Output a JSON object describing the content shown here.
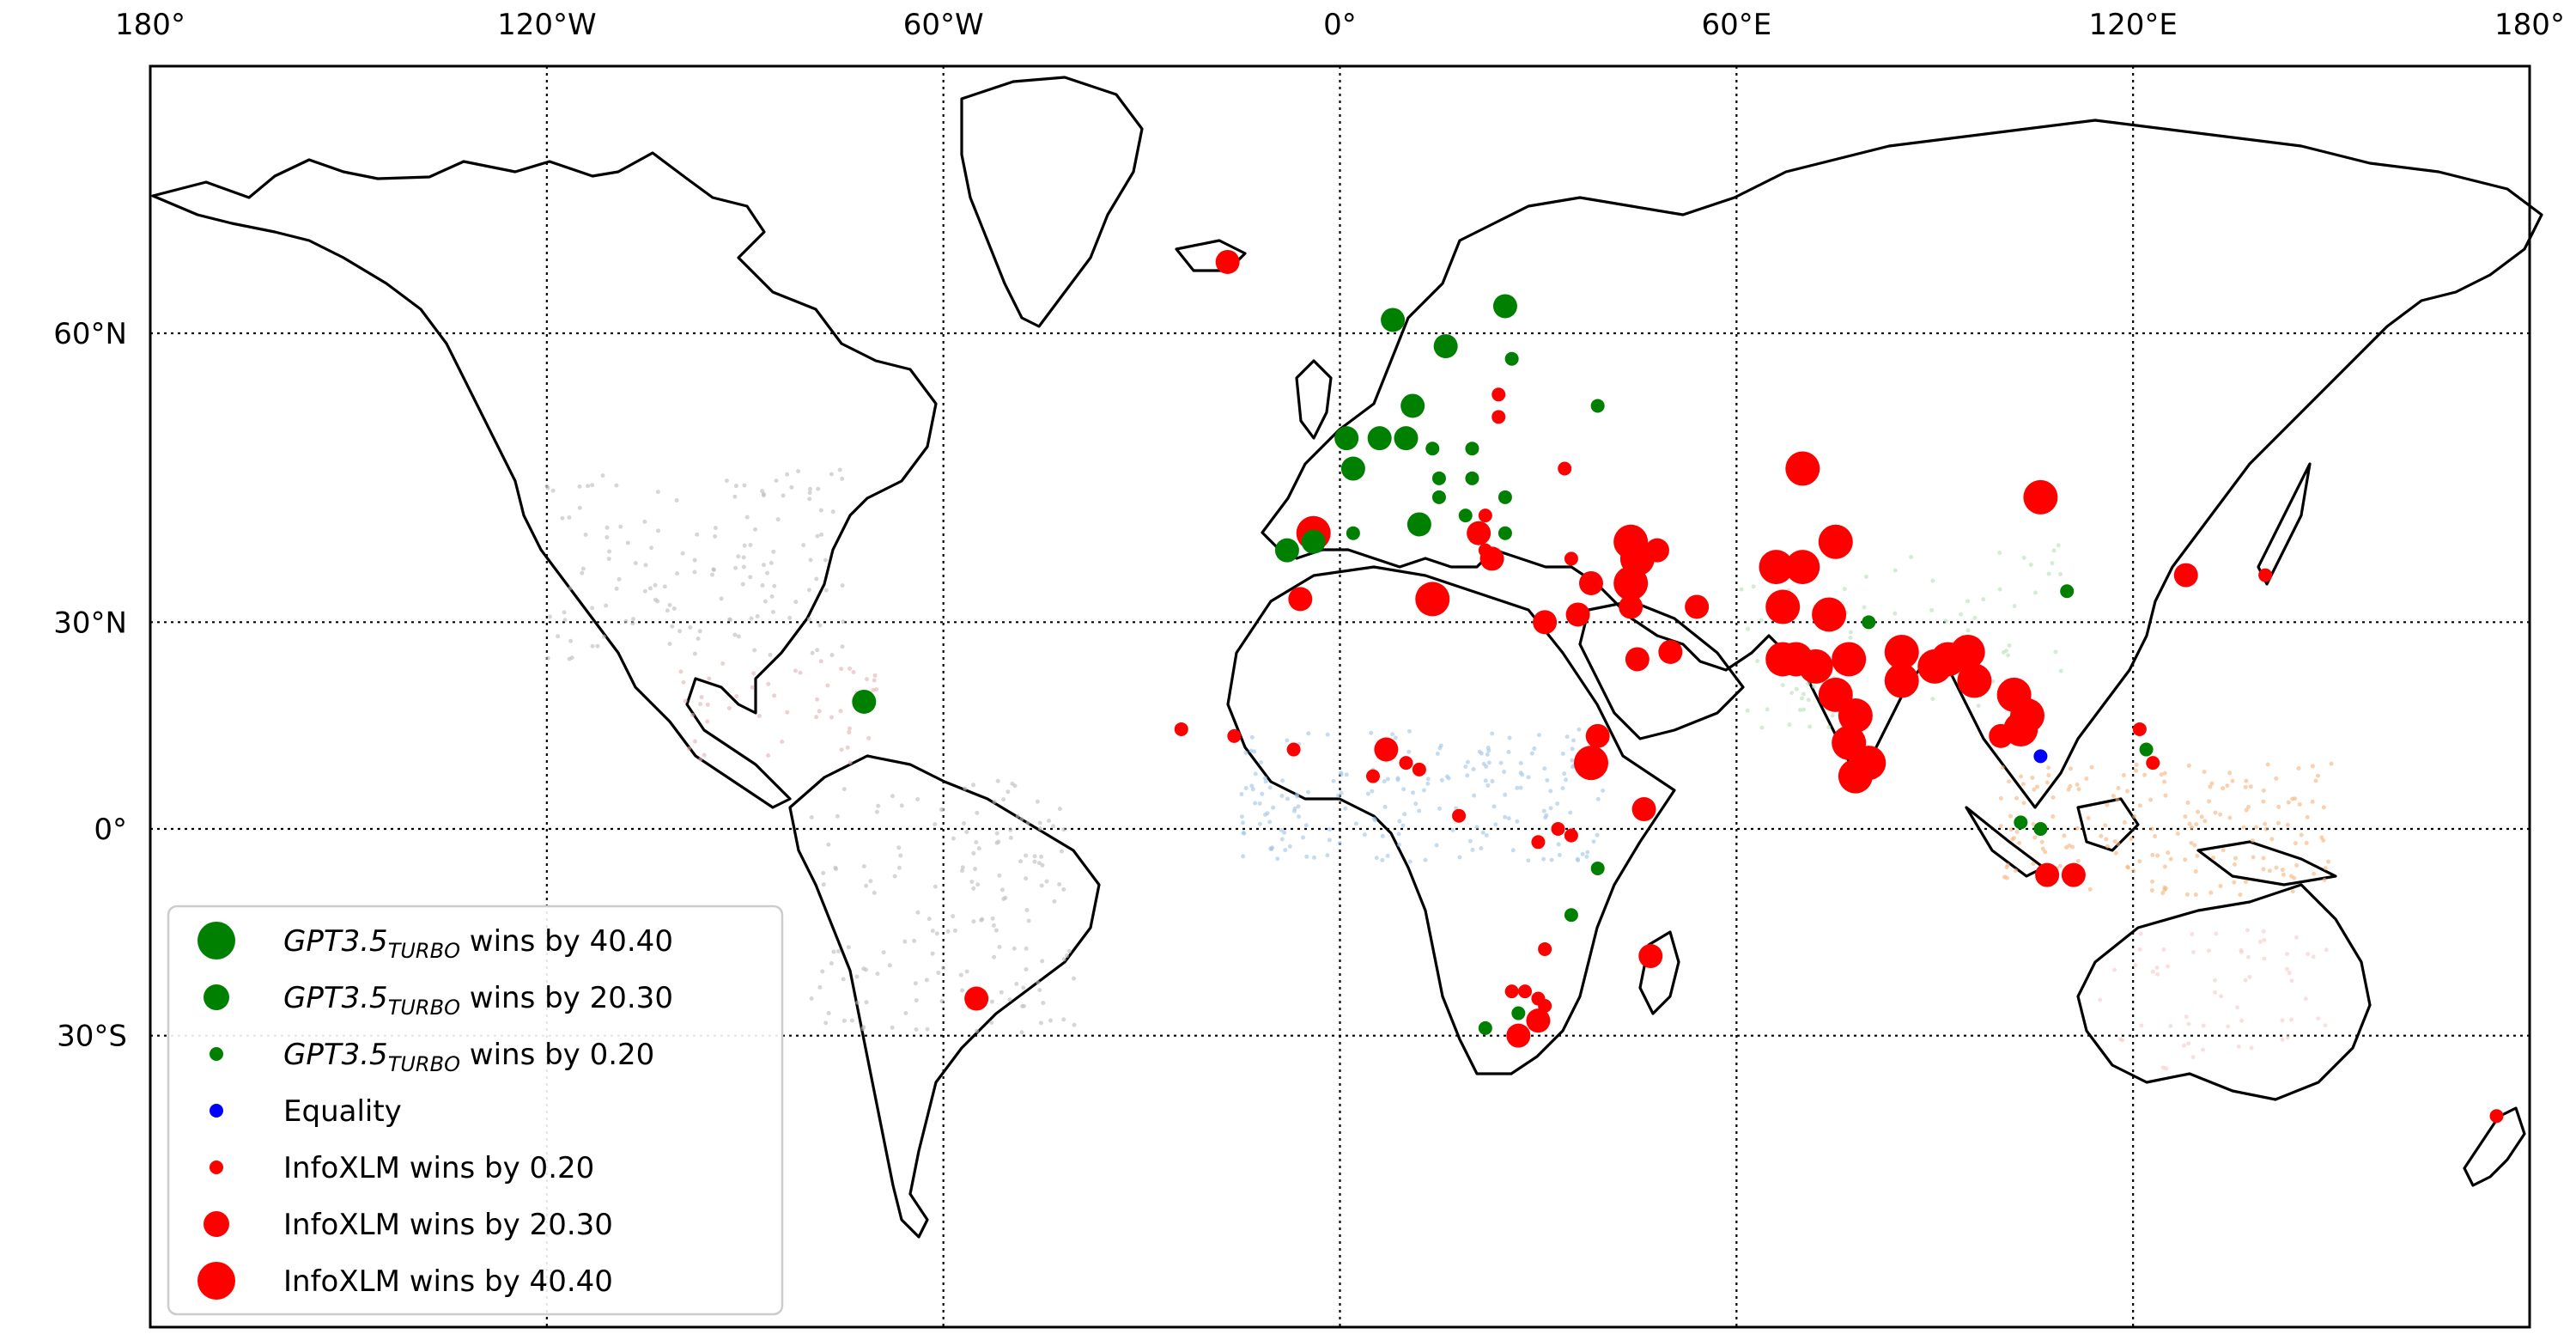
{
  "map": {
    "top_longitude_labels": [
      "180°",
      "120°W",
      "60°W",
      "0°",
      "60°E",
      "120°E",
      "180°"
    ],
    "left_latitude_labels": [
      "60°N",
      "30°N",
      "0°",
      "30°S"
    ],
    "legend": [
      {
        "base": "GPT3.5",
        "sub": "TURBO",
        "suffix": " wins by 40.40",
        "color": "#008000",
        "size": "large"
      },
      {
        "base": "GPT3.5",
        "sub": "TURBO",
        "suffix": " wins by 20.30",
        "color": "#008000",
        "size": "medium"
      },
      {
        "base": "GPT3.5",
        "sub": "TURBO",
        "suffix": " wins by 0.20",
        "color": "#008000",
        "size": "small"
      },
      {
        "text": "Equality",
        "color": "#0000ff",
        "size": "small"
      },
      {
        "text": "InfoXLM wins by 0.20",
        "color": "#ff0000",
        "size": "small"
      },
      {
        "text": "InfoXLM wins by 20.30",
        "color": "#ff0000",
        "size": "medium"
      },
      {
        "text": "InfoXLM wins by 40.40",
        "color": "#ff0000",
        "size": "large"
      }
    ],
    "colors": {
      "gpt_wins": "#008000",
      "equality": "#0000ff",
      "infoxlm_wins": "#ff0000",
      "background_points": "#c8c8c8"
    },
    "points": [
      {
        "lon": -17,
        "lat": 65,
        "winner": "infoxlm",
        "size": "medium"
      },
      {
        "lon": 8,
        "lat": 61,
        "winner": "gpt",
        "size": "medium"
      },
      {
        "lon": 25,
        "lat": 62,
        "winner": "gpt",
        "size": "medium"
      },
      {
        "lon": 16,
        "lat": 59,
        "winner": "gpt",
        "size": "medium"
      },
      {
        "lon": 26,
        "lat": 58,
        "winner": "gpt",
        "size": "small"
      },
      {
        "lon": 24,
        "lat": 55,
        "winner": "infoxlm",
        "size": "small"
      },
      {
        "lon": 24,
        "lat": 53,
        "winner": "infoxlm",
        "size": "small"
      },
      {
        "lon": 11,
        "lat": 54,
        "winner": "gpt",
        "size": "medium"
      },
      {
        "lon": 39,
        "lat": 54,
        "winner": "gpt",
        "size": "small"
      },
      {
        "lon": 1,
        "lat": 51,
        "winner": "gpt",
        "size": "medium"
      },
      {
        "lon": 6,
        "lat": 51,
        "winner": "gpt",
        "size": "medium"
      },
      {
        "lon": 10,
        "lat": 51,
        "winner": "gpt",
        "size": "medium"
      },
      {
        "lon": 14,
        "lat": 50,
        "winner": "gpt",
        "size": "small"
      },
      {
        "lon": 20,
        "lat": 50,
        "winner": "gpt",
        "size": "small"
      },
      {
        "lon": 2,
        "lat": 48,
        "winner": "gpt",
        "size": "medium"
      },
      {
        "lon": 15,
        "lat": 47,
        "winner": "gpt",
        "size": "small"
      },
      {
        "lon": 20,
        "lat": 47,
        "winner": "gpt",
        "size": "small"
      },
      {
        "lon": 34,
        "lat": 48,
        "winner": "infoxlm",
        "size": "small"
      },
      {
        "lon": 15,
        "lat": 45,
        "winner": "gpt",
        "size": "small"
      },
      {
        "lon": 25,
        "lat": 45,
        "winner": "gpt",
        "size": "small"
      },
      {
        "lon": 19,
        "lat": 43,
        "winner": "gpt",
        "size": "small"
      },
      {
        "lon": 22,
        "lat": 43,
        "winner": "infoxlm",
        "size": "small"
      },
      {
        "lon": 12,
        "lat": 42,
        "winner": "gpt",
        "size": "medium"
      },
      {
        "lon": 2,
        "lat": 41,
        "winner": "gpt",
        "size": "small"
      },
      {
        "lon": 25,
        "lat": 41,
        "winner": "gpt",
        "size": "small"
      },
      {
        "lon": 21,
        "lat": 41,
        "winner": "infoxlm",
        "size": "medium"
      },
      {
        "lon": 23,
        "lat": 38,
        "winner": "infoxlm",
        "size": "medium"
      },
      {
        "lon": 22,
        "lat": 39,
        "winner": "infoxlm",
        "size": "small"
      },
      {
        "lon": -4,
        "lat": 41,
        "winner": "infoxlm",
        "size": "large"
      },
      {
        "lon": -4,
        "lat": 40,
        "winner": "gpt",
        "size": "medium"
      },
      {
        "lon": -8,
        "lat": 39,
        "winner": "gpt",
        "size": "medium"
      },
      {
        "lon": 35,
        "lat": 38,
        "winner": "infoxlm",
        "size": "small"
      },
      {
        "lon": 44,
        "lat": 40,
        "winner": "infoxlm",
        "size": "large"
      },
      {
        "lon": 45,
        "lat": 38,
        "winner": "infoxlm",
        "size": "large"
      },
      {
        "lon": 48,
        "lat": 39,
        "winner": "infoxlm",
        "size": "medium"
      },
      {
        "lon": 44,
        "lat": 35,
        "winner": "infoxlm",
        "size": "large"
      },
      {
        "lon": 38,
        "lat": 35,
        "winner": "infoxlm",
        "size": "medium"
      },
      {
        "lon": 44,
        "lat": 32,
        "winner": "infoxlm",
        "size": "medium"
      },
      {
        "lon": 54,
        "lat": 32,
        "winner": "infoxlm",
        "size": "medium"
      },
      {
        "lon": 36,
        "lat": 31,
        "winner": "infoxlm",
        "size": "medium"
      },
      {
        "lon": 31,
        "lat": 30,
        "winner": "infoxlm",
        "size": "medium"
      },
      {
        "lon": 14,
        "lat": 33,
        "winner": "infoxlm",
        "size": "large"
      },
      {
        "lon": -6,
        "lat": 33,
        "winner": "infoxlm",
        "size": "medium"
      },
      {
        "lon": 45,
        "lat": 25,
        "winner": "infoxlm",
        "size": "medium"
      },
      {
        "lon": 50,
        "lat": 26,
        "winner": "infoxlm",
        "size": "medium"
      },
      {
        "lon": 70,
        "lat": 48,
        "winner": "infoxlm",
        "size": "large"
      },
      {
        "lon": 66,
        "lat": 37,
        "winner": "infoxlm",
        "size": "large"
      },
      {
        "lon": 70,
        "lat": 37,
        "winner": "infoxlm",
        "size": "large"
      },
      {
        "lon": 75,
        "lat": 40,
        "winner": "infoxlm",
        "size": "large"
      },
      {
        "lon": 67,
        "lat": 32,
        "winner": "infoxlm",
        "size": "large"
      },
      {
        "lon": 74,
        "lat": 31,
        "winner": "infoxlm",
        "size": "large"
      },
      {
        "lon": 80,
        "lat": 30,
        "winner": "gpt",
        "size": "small"
      },
      {
        "lon": 106,
        "lat": 45,
        "winner": "infoxlm",
        "size": "large"
      },
      {
        "lon": 110,
        "lat": 34,
        "winner": "gpt",
        "size": "small"
      },
      {
        "lon": 128,
        "lat": 36,
        "winner": "infoxlm",
        "size": "medium"
      },
      {
        "lon": 140,
        "lat": 36,
        "winner": "infoxlm",
        "size": "small"
      },
      {
        "lon": 69,
        "lat": 25,
        "winner": "infoxlm",
        "size": "large"
      },
      {
        "lon": 67,
        "lat": 25,
        "winner": "infoxlm",
        "size": "large"
      },
      {
        "lon": 72,
        "lat": 24,
        "winner": "infoxlm",
        "size": "large"
      },
      {
        "lon": 77,
        "lat": 25,
        "winner": "infoxlm",
        "size": "large"
      },
      {
        "lon": 85,
        "lat": 26,
        "winner": "infoxlm",
        "size": "large"
      },
      {
        "lon": 90,
        "lat": 24,
        "winner": "infoxlm",
        "size": "large"
      },
      {
        "lon": 85,
        "lat": 22,
        "winner": "infoxlm",
        "size": "large"
      },
      {
        "lon": 92,
        "lat": 25,
        "winner": "infoxlm",
        "size": "large"
      },
      {
        "lon": 96,
        "lat": 22,
        "winner": "infoxlm",
        "size": "large"
      },
      {
        "lon": 95,
        "lat": 26,
        "winner": "infoxlm",
        "size": "large"
      },
      {
        "lon": 102,
        "lat": 20,
        "winner": "infoxlm",
        "size": "large"
      },
      {
        "lon": 104,
        "lat": 17,
        "winner": "infoxlm",
        "size": "large"
      },
      {
        "lon": 103,
        "lat": 15,
        "winner": "infoxlm",
        "size": "large"
      },
      {
        "lon": 106,
        "lat": 11,
        "winner": "equality",
        "size": "small"
      },
      {
        "lon": 75,
        "lat": 20,
        "winner": "infoxlm",
        "size": "large"
      },
      {
        "lon": 78,
        "lat": 17,
        "winner": "infoxlm",
        "size": "large"
      },
      {
        "lon": 77,
        "lat": 13,
        "winner": "infoxlm",
        "size": "large"
      },
      {
        "lon": 80,
        "lat": 10,
        "winner": "infoxlm",
        "size": "large"
      },
      {
        "lon": 78,
        "lat": 8,
        "winner": "infoxlm",
        "size": "large"
      },
      {
        "lon": 100,
        "lat": 14,
        "winner": "infoxlm",
        "size": "medium"
      },
      {
        "lon": 103,
        "lat": 1,
        "winner": "gpt",
        "size": "small"
      },
      {
        "lon": 106,
        "lat": 0,
        "winner": "gpt",
        "size": "small"
      },
      {
        "lon": 107,
        "lat": -7,
        "winner": "infoxlm",
        "size": "medium"
      },
      {
        "lon": 111,
        "lat": -7,
        "winner": "infoxlm",
        "size": "medium"
      },
      {
        "lon": 121,
        "lat": 15,
        "winner": "infoxlm",
        "size": "small"
      },
      {
        "lon": 122,
        "lat": 12,
        "winner": "gpt",
        "size": "small"
      },
      {
        "lon": 123,
        "lat": 10,
        "winner": "infoxlm",
        "size": "small"
      },
      {
        "lon": 175,
        "lat": -40,
        "winner": "infoxlm",
        "size": "small"
      },
      {
        "lon": -72,
        "lat": 19,
        "winner": "gpt",
        "size": "medium"
      },
      {
        "lon": -55,
        "lat": -25,
        "winner": "infoxlm",
        "size": "medium"
      },
      {
        "lon": -24,
        "lat": 15,
        "winner": "infoxlm",
        "size": "small"
      },
      {
        "lon": -16,
        "lat": 14,
        "winner": "infoxlm",
        "size": "small"
      },
      {
        "lon": -7,
        "lat": 12,
        "winner": "infoxlm",
        "size": "small"
      },
      {
        "lon": 7,
        "lat": 12,
        "winner": "infoxlm",
        "size": "medium"
      },
      {
        "lon": 10,
        "lat": 10,
        "winner": "infoxlm",
        "size": "small"
      },
      {
        "lon": 12,
        "lat": 9,
        "winner": "infoxlm",
        "size": "small"
      },
      {
        "lon": 5,
        "lat": 8,
        "winner": "infoxlm",
        "size": "small"
      },
      {
        "lon": 39,
        "lat": 14,
        "winner": "infoxlm",
        "size": "medium"
      },
      {
        "lon": 38,
        "lat": 10,
        "winner": "infoxlm",
        "size": "large"
      },
      {
        "lon": 18,
        "lat": 2,
        "winner": "infoxlm",
        "size": "small"
      },
      {
        "lon": 33,
        "lat": 0,
        "winner": "infoxlm",
        "size": "small"
      },
      {
        "lon": 35,
        "lat": -1,
        "winner": "infoxlm",
        "size": "small"
      },
      {
        "lon": 46,
        "lat": 3,
        "winner": "infoxlm",
        "size": "medium"
      },
      {
        "lon": 30,
        "lat": -2,
        "winner": "infoxlm",
        "size": "small"
      },
      {
        "lon": 39,
        "lat": -6,
        "winner": "gpt",
        "size": "small"
      },
      {
        "lon": 35,
        "lat": -13,
        "winner": "gpt",
        "size": "small"
      },
      {
        "lon": 31,
        "lat": -18,
        "winner": "infoxlm",
        "size": "small"
      },
      {
        "lon": 47,
        "lat": -19,
        "winner": "infoxlm",
        "size": "medium"
      },
      {
        "lon": 26,
        "lat": -24,
        "winner": "infoxlm",
        "size": "small"
      },
      {
        "lon": 28,
        "lat": -24,
        "winner": "infoxlm",
        "size": "small"
      },
      {
        "lon": 30,
        "lat": -25,
        "winner": "infoxlm",
        "size": "small"
      },
      {
        "lon": 31,
        "lat": -26,
        "winner": "infoxlm",
        "size": "small"
      },
      {
        "lon": 27,
        "lat": -27,
        "winner": "gpt",
        "size": "small"
      },
      {
        "lon": 22,
        "lat": -29,
        "winner": "gpt",
        "size": "small"
      },
      {
        "lon": 30,
        "lat": -28,
        "winner": "infoxlm",
        "size": "medium"
      },
      {
        "lon": 27,
        "lat": -30,
        "winner": "infoxlm",
        "size": "medium"
      }
    ]
  }
}
